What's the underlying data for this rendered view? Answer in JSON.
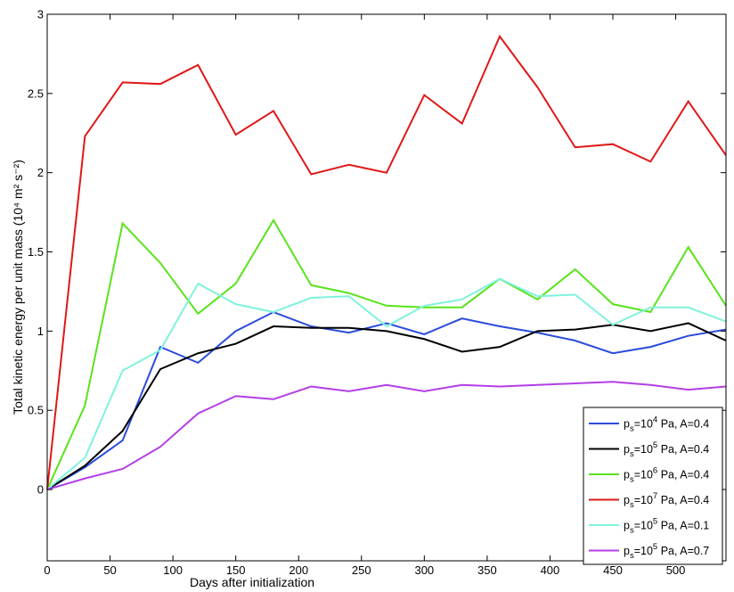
{
  "chart_data": {
    "type": "line",
    "xlabel": "Days after initialization",
    "ylabel": "Total kinetic energy per unit mass (10⁴ m² s⁻²)",
    "xlim": [
      0,
      540
    ],
    "ylim": [
      -0.45,
      3
    ],
    "xticks": [
      0,
      50,
      100,
      150,
      200,
      250,
      300,
      350,
      400,
      450,
      500
    ],
    "yticks": [
      0,
      0.5,
      1,
      1.5,
      2,
      2.5,
      3
    ],
    "xtick_labels": [
      "0",
      "50",
      "100",
      "150",
      "200",
      "250",
      "300",
      "350",
      "400",
      "450",
      "500"
    ],
    "ytick_labels": [
      "0",
      "0.5",
      "1",
      "1.5",
      "2",
      "2.5",
      "3"
    ],
    "grid": false,
    "legend_position": "bottom-right",
    "x": [
      0,
      30,
      60,
      90,
      120,
      150,
      180,
      210,
      240,
      270,
      300,
      330,
      360,
      390,
      420,
      450,
      480,
      510,
      540
    ],
    "series": [
      {
        "name": "ps=10⁴ Pa, A=0.4",
        "legend_base": "p",
        "legend_sub": "s",
        "legend_mid": "=10",
        "legend_sup": "4",
        "legend_tail": " Pa, A=0.4",
        "color": "#2b4bdb",
        "values": [
          0,
          0.14,
          0.31,
          0.9,
          0.8,
          1.0,
          1.12,
          1.03,
          0.99,
          1.05,
          0.98,
          1.08,
          1.03,
          0.99,
          0.94,
          0.86,
          0.9,
          0.97,
          1.01
        ]
      },
      {
        "name": "ps=10⁵ Pa, A=0.4",
        "legend_base": "p",
        "legend_sub": "s",
        "legend_mid": "=10",
        "legend_sup": "5",
        "legend_tail": " Pa, A=0.4",
        "color": "#000000",
        "values": [
          0,
          0.15,
          0.37,
          0.76,
          0.86,
          0.92,
          1.03,
          1.02,
          1.02,
          1.0,
          0.95,
          0.87,
          0.9,
          1.0,
          1.01,
          1.04,
          1.0,
          1.05,
          0.94
        ]
      },
      {
        "name": "ps=10⁶ Pa, A=0.4",
        "legend_base": "p",
        "legend_sub": "s",
        "legend_mid": "=10",
        "legend_sup": "6",
        "legend_tail": " Pa, A=0.4",
        "color": "#59e31b",
        "values": [
          0,
          0.53,
          1.68,
          1.43,
          1.11,
          1.3,
          1.7,
          1.29,
          1.24,
          1.16,
          1.15,
          1.15,
          1.33,
          1.2,
          1.39,
          1.17,
          1.12,
          1.53,
          1.16
        ]
      },
      {
        "name": "ps=10⁷ Pa, A=0.4",
        "legend_base": "p",
        "legend_sub": "s",
        "legend_mid": "=10",
        "legend_sup": "7",
        "legend_tail": " Pa, A=0.4",
        "color": "#e01818",
        "values": [
          0,
          2.23,
          2.57,
          2.56,
          2.68,
          2.24,
          2.39,
          1.99,
          2.05,
          2.0,
          2.49,
          2.31,
          2.86,
          2.54,
          2.16,
          2.18,
          2.07,
          2.45,
          2.11
        ]
      },
      {
        "name": "ps=10⁵ Pa, A=0.1",
        "legend_base": "p",
        "legend_sub": "s",
        "legend_mid": "=10",
        "legend_sup": "5",
        "legend_tail": " Pa, A=0.1",
        "color": "#7ff2dc",
        "values": [
          0,
          0.2,
          0.75,
          0.88,
          1.3,
          1.17,
          1.12,
          1.21,
          1.22,
          1.03,
          1.16,
          1.2,
          1.33,
          1.22,
          1.23,
          1.04,
          1.15,
          1.15,
          1.06
        ]
      },
      {
        "name": "ps=10⁵ Pa, A=0.7",
        "legend_base": "p",
        "legend_sub": "s",
        "legend_mid": "=10",
        "legend_sup": "5",
        "legend_tail": " Pa, A=0.7",
        "color": "#b43ee6",
        "values": [
          0,
          0.07,
          0.13,
          0.27,
          0.48,
          0.59,
          0.57,
          0.65,
          0.62,
          0.66,
          0.62,
          0.66,
          0.65,
          0.66,
          0.67,
          0.68,
          0.66,
          0.63,
          0.65
        ]
      }
    ]
  }
}
